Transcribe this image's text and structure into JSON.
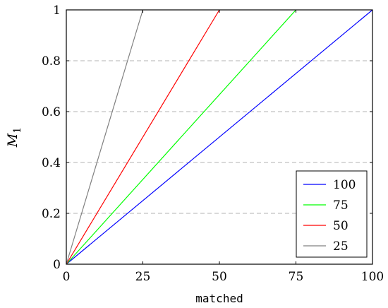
{
  "chart_data": {
    "type": "line",
    "xlabel": "matched",
    "ylabel": "M",
    "ylabel_subscript": "1",
    "xlim": [
      0,
      100
    ],
    "ylim": [
      0,
      1
    ],
    "xticks": [
      0,
      25,
      50,
      75,
      100
    ],
    "yticks": [
      0,
      0.2,
      0.4,
      0.6,
      0.8,
      1
    ],
    "ytick_labels": [
      "0",
      "0.2",
      "0.4",
      "0.6",
      "0.8",
      "1"
    ],
    "grid": "horizontal dashed",
    "legend_position": "bottom-right",
    "series": [
      {
        "name": "100",
        "color": "#0000ff",
        "x": [
          0,
          100
        ],
        "y": [
          0,
          1
        ]
      },
      {
        "name": "75",
        "color": "#00ff00",
        "x": [
          0,
          75
        ],
        "y": [
          0,
          1
        ]
      },
      {
        "name": "50",
        "color": "#ff0000",
        "x": [
          0,
          50
        ],
        "y": [
          0,
          1
        ]
      },
      {
        "name": "25",
        "color": "#808080",
        "x": [
          0,
          25
        ],
        "y": [
          0,
          1
        ]
      }
    ]
  }
}
